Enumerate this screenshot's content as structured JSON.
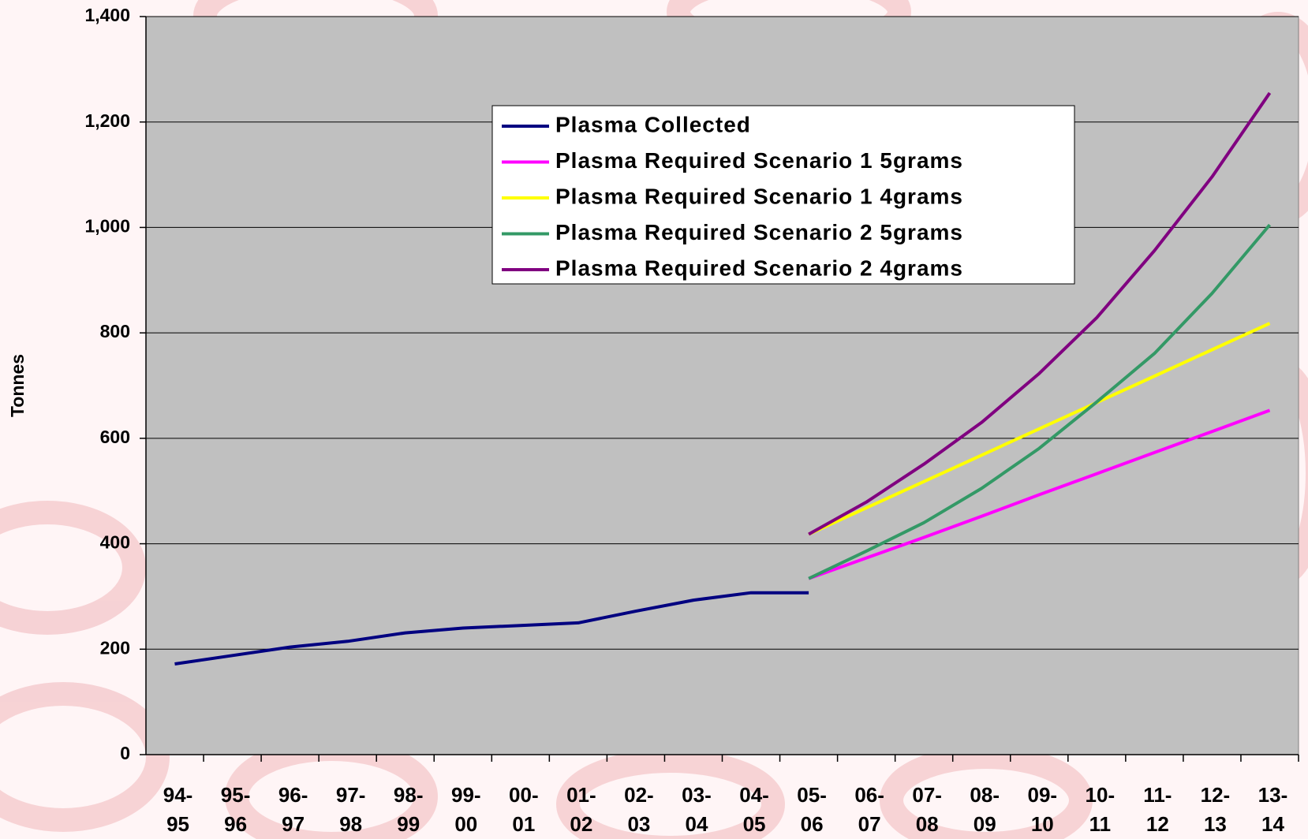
{
  "chart_data": {
    "type": "line",
    "y_label": "Tonnes",
    "categories": [
      [
        "94-",
        "95"
      ],
      [
        "95-",
        "96"
      ],
      [
        "96-",
        "97"
      ],
      [
        "97-",
        "98"
      ],
      [
        "98-",
        "99"
      ],
      [
        "99-",
        "00"
      ],
      [
        "00-",
        "01"
      ],
      [
        "01-",
        "02"
      ],
      [
        "02-",
        "03"
      ],
      [
        "03-",
        "04"
      ],
      [
        "04-",
        "05"
      ],
      [
        "05-",
        "06"
      ],
      [
        "06-",
        "07"
      ],
      [
        "07-",
        "08"
      ],
      [
        "08-",
        "09"
      ],
      [
        "09-",
        "10"
      ],
      [
        "10-",
        "11"
      ],
      [
        "11-",
        "12"
      ],
      [
        "12-",
        "13"
      ],
      [
        "13-",
        "14"
      ]
    ],
    "series": [
      {
        "name": "Plasma Collected",
        "color": "#000080",
        "values": [
          172,
          188,
          204,
          215,
          231,
          240,
          245,
          250,
          272,
          293,
          307,
          307,
          null,
          null,
          null,
          null,
          null,
          null,
          null,
          null
        ]
      },
      {
        "name": "Plasma Required Scenario 1 5grams",
        "color": "#ff00ff",
        "values": [
          null,
          null,
          null,
          null,
          null,
          null,
          null,
          null,
          null,
          null,
          null,
          334,
          373,
          412,
          452,
          493,
          533,
          573,
          613,
          653
        ]
      },
      {
        "name": "Plasma Required Scenario 1 4grams",
        "color": "#ffff00",
        "values": [
          null,
          null,
          null,
          null,
          null,
          null,
          null,
          null,
          null,
          null,
          null,
          418,
          468,
          518,
          568,
          618,
          668,
          718,
          768,
          818
        ]
      },
      {
        "name": "Plasma Required Scenario 2 5grams",
        "color": "#339966",
        "values": [
          null,
          null,
          null,
          null,
          null,
          null,
          null,
          null,
          null,
          null,
          null,
          334,
          386,
          440,
          505,
          581,
          669,
          761,
          875,
          1005
        ]
      },
      {
        "name": "Plasma Required Scenario 2 4grams",
        "color": "#800080",
        "values": [
          null,
          null,
          null,
          null,
          null,
          null,
          null,
          null,
          null,
          null,
          null,
          418,
          479,
          551,
          630,
          723,
          829,
          956,
          1096,
          1255
        ]
      }
    ],
    "ylim": [
      0,
      1400
    ],
    "yticks": [
      0,
      200,
      400,
      600,
      800,
      {
        "value": 1000,
        "label": "1,000"
      },
      {
        "value": 1200,
        "label": "1,200"
      },
      {
        "value": 1400,
        "label": "1,400"
      }
    ],
    "grid": true
  }
}
